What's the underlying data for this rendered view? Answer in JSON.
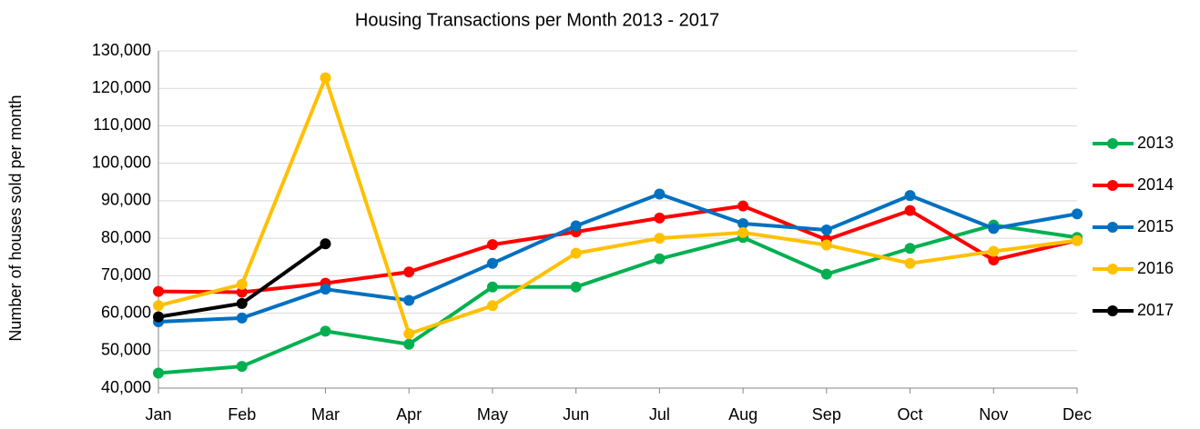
{
  "chart_data": {
    "type": "line",
    "title": "Housing Transactions per Month 2013 - 2017",
    "y_label": "Number of houses sold per month",
    "categories": [
      "Jan",
      "Feb",
      "Mar",
      "Apr",
      "May",
      "Jun",
      "Jul",
      "Aug",
      "Sep",
      "Oct",
      "Nov",
      "Dec"
    ],
    "ylim": [
      40000,
      130000
    ],
    "yticks": [
      {
        "value": 40000,
        "label": "40,000"
      },
      {
        "value": 50000,
        "label": "50,000"
      },
      {
        "value": 60000,
        "label": "60,000"
      },
      {
        "value": 70000,
        "label": "70,000"
      },
      {
        "value": 80000,
        "label": "80,000"
      },
      {
        "value": 90000,
        "label": "90,000"
      },
      {
        "value": 100000,
        "label": "100,000"
      },
      {
        "value": 110000,
        "label": "110,000"
      },
      {
        "value": 120000,
        "label": "120,000"
      },
      {
        "value": 130000,
        "label": "130,000"
      }
    ],
    "grid": true,
    "legend": "right",
    "series": [
      {
        "name": "2013",
        "color": "#00b050",
        "values": [
          44000,
          45800,
          55200,
          51700,
          67000,
          67000,
          74500,
          80200,
          70400,
          77300,
          83500,
          80200
        ]
      },
      {
        "name": "2014",
        "color": "#ff0000",
        "values": [
          65800,
          65600,
          68000,
          71000,
          78300,
          81700,
          85400,
          88600,
          79600,
          87400,
          74200,
          79400
        ]
      },
      {
        "name": "2015",
        "color": "#0070c0",
        "values": [
          57700,
          58700,
          66400,
          63400,
          73300,
          83300,
          91800,
          83900,
          82200,
          91400,
          82600,
          86500
        ]
      },
      {
        "name": "2016",
        "color": "#ffc000",
        "values": [
          62000,
          67700,
          122800,
          54500,
          62000,
          76000,
          80000,
          81500,
          78200,
          73300,
          76500,
          79400
        ]
      },
      {
        "name": "2017",
        "color": "#000000",
        "values": [
          59000,
          62600,
          78500,
          null,
          null,
          null,
          null,
          null,
          null,
          null,
          null,
          null
        ]
      }
    ]
  }
}
